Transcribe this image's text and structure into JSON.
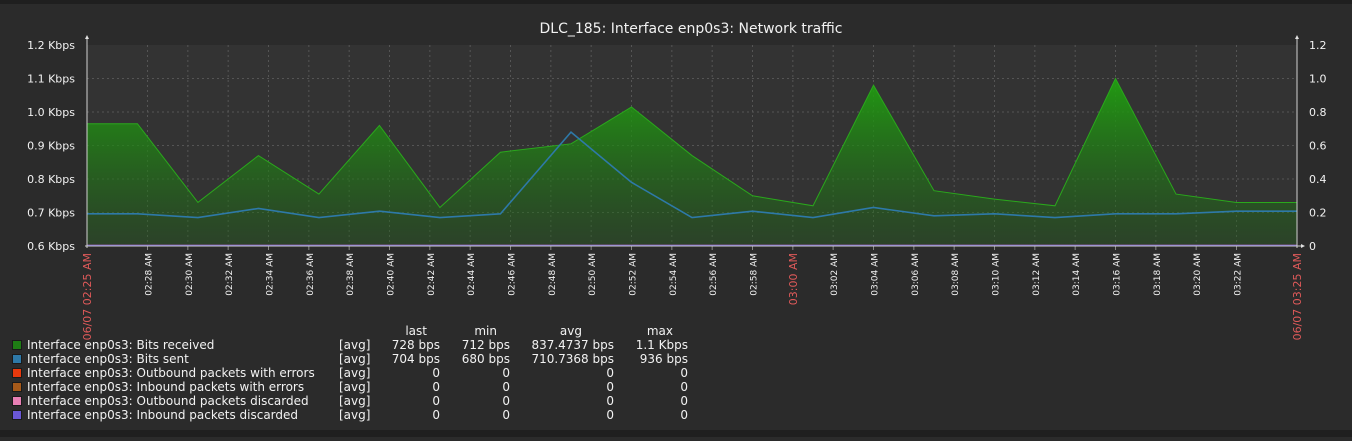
{
  "chart_data": {
    "type": "area",
    "title": "DLC_185: Interface enp0s3: Network traffic",
    "y_left": {
      "unit": "Kbps",
      "ylim": [
        0.6,
        1.2
      ],
      "ticks": [
        1.2,
        1.1,
        1.0,
        0.9,
        0.8,
        0.7,
        0.6
      ],
      "tick_labels": [
        "1.2 Kbps",
        "1.1 Kbps",
        "1.0 Kbps",
        "0.9 Kbps",
        "0.8 Kbps",
        "0.7 Kbps",
        "0.6 Kbps"
      ]
    },
    "y_right": {
      "ylim": [
        0,
        1.2
      ],
      "ticks": [
        1.2,
        1.0,
        0.8,
        0.6,
        0.4,
        0.2,
        0
      ],
      "tick_labels": [
        "1.2",
        "1.0",
        "0.8",
        "0.6",
        "0.4",
        "0.2",
        "0"
      ]
    },
    "x": {
      "start_label": "06/07 02:25 AM",
      "end_label": "06/07 03:25 AM",
      "midnight_label": "03:00 AM",
      "tick_labels": [
        "02:28 AM",
        "02:30 AM",
        "02:32 AM",
        "02:34 AM",
        "02:36 AM",
        "02:38 AM",
        "02:40 AM",
        "02:42 AM",
        "02:44 AM",
        "02:46 AM",
        "02:48 AM",
        "02:50 AM",
        "02:52 AM",
        "02:54 AM",
        "02:56 AM",
        "02:58 AM",
        "03:00 AM",
        "03:02 AM",
        "03:04 AM",
        "03:06 AM",
        "03:08 AM",
        "03:10 AM",
        "03:12 AM",
        "03:14 AM",
        "03:16 AM",
        "03:18 AM",
        "03:20 AM",
        "03:22 AM"
      ],
      "tick_minutes": [
        28,
        30,
        32,
        34,
        36,
        38,
        40,
        42,
        44,
        46,
        48,
        50,
        52,
        54,
        56,
        58,
        60,
        62,
        64,
        66,
        68,
        70,
        72,
        74,
        76,
        78,
        80,
        82
      ]
    },
    "series": [
      {
        "name": "Interface enp0s3: Bits received",
        "color": "#1e7d14",
        "style": "area",
        "x_minutes": [
          25,
          27.5,
          30.5,
          33.5,
          36.5,
          39.5,
          42.5,
          45.5,
          49,
          52,
          55,
          58,
          61,
          64,
          67,
          70,
          73,
          76,
          79,
          82,
          85
        ],
        "values_kbps": [
          0.965,
          0.965,
          0.73,
          0.87,
          0.755,
          0.96,
          0.715,
          0.88,
          0.905,
          1.015,
          0.87,
          0.75,
          0.72,
          1.08,
          0.765,
          0.74,
          0.72,
          1.1,
          0.755,
          0.73,
          0.73
        ]
      },
      {
        "name": "Interface enp0s3: Bits sent",
        "color": "#2e79a8",
        "style": "line",
        "x_minutes": [
          25,
          27.5,
          30.5,
          33.5,
          36.5,
          39.5,
          42.5,
          45.5,
          49,
          52,
          55,
          58,
          61,
          64,
          67,
          70,
          73,
          76,
          79,
          82,
          85
        ],
        "values_kbps": [
          0.696,
          0.696,
          0.685,
          0.712,
          0.685,
          0.704,
          0.685,
          0.696,
          0.94,
          0.79,
          0.685,
          0.704,
          0.685,
          0.715,
          0.69,
          0.696,
          0.685,
          0.696,
          0.696,
          0.704,
          0.704
        ]
      },
      {
        "name": "Interface enp0s3: Outbound packets with errors",
        "color": "#e8390d",
        "style": "line",
        "values": [
          0
        ]
      },
      {
        "name": "Interface enp0s3: Inbound packets with errors",
        "color": "#a65a1a",
        "style": "line",
        "values": [
          0
        ]
      },
      {
        "name": "Interface enp0s3: Outbound packets discarded",
        "color": "#e87fb4",
        "style": "line",
        "values": [
          0
        ]
      },
      {
        "name": "Interface enp0s3: Inbound packets discarded",
        "color": "#6a57d6",
        "style": "line",
        "values": [
          0
        ]
      }
    ],
    "grid": true
  },
  "legend": {
    "headers": {
      "last": "last",
      "min": "min",
      "avg": "avg",
      "max": "max"
    },
    "rows": [
      {
        "color": "#1e7d14",
        "name": "Interface enp0s3: Bits received",
        "func": "[avg]",
        "last": "728 bps",
        "min": "712 bps",
        "avg": "837.4737 bps",
        "max": "1.1 Kbps"
      },
      {
        "color": "#2e79a8",
        "name": "Interface enp0s3: Bits sent",
        "func": "[avg]",
        "last": "704 bps",
        "min": "680 bps",
        "avg": "710.7368 bps",
        "max": "936 bps"
      },
      {
        "color": "#e8390d",
        "name": "Interface enp0s3: Outbound packets with errors",
        "func": "[avg]",
        "last": "0",
        "min": "0",
        "avg": "0",
        "max": "0"
      },
      {
        "color": "#a65a1a",
        "name": "Interface enp0s3: Inbound packets with errors",
        "func": "[avg]",
        "last": "0",
        "min": "0",
        "avg": "0",
        "max": "0"
      },
      {
        "color": "#e87fb4",
        "name": "Interface enp0s3: Outbound packets discarded",
        "func": "[avg]",
        "last": "0",
        "min": "0",
        "avg": "0",
        "max": "0"
      },
      {
        "color": "#6a57d6",
        "name": "Interface enp0s3: Inbound packets discarded",
        "func": "[avg]",
        "last": "0",
        "min": "0",
        "avg": "0",
        "max": "0"
      }
    ]
  }
}
